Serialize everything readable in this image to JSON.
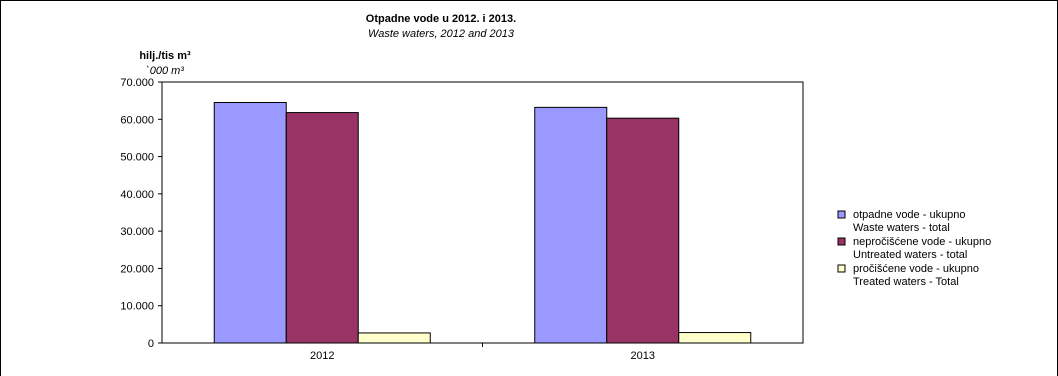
{
  "chart_data": {
    "type": "bar",
    "title": "Otpadne vode u 2012. i 2013.",
    "subtitle": "Waste waters, 2012 and 2013",
    "unit_line1": "hilj./tis m³",
    "unit_line2": "`000 m³",
    "categories": [
      "2012",
      "2013"
    ],
    "y_ticks": [
      "0",
      "10.000",
      "20.000",
      "30.000",
      "40.000",
      "50.000",
      "60.000",
      "70.000"
    ],
    "ylim": [
      0,
      70000
    ],
    "grid": false,
    "legend_position": "right",
    "series": [
      {
        "name": "otpadne vode - ukupno",
        "name_en": "Waste waters - total",
        "color": "#9999ff",
        "values": [
          64500,
          63200
        ]
      },
      {
        "name": "nepročišćene vode - ukupno",
        "name_en": "Untreated waters - total",
        "color": "#993366",
        "values": [
          61800,
          60300
        ]
      },
      {
        "name": "pročišćene vode - ukupno",
        "name_en": "Treated waters - Total",
        "color": "#ffffcc",
        "values": [
          2700,
          2800
        ]
      }
    ]
  }
}
